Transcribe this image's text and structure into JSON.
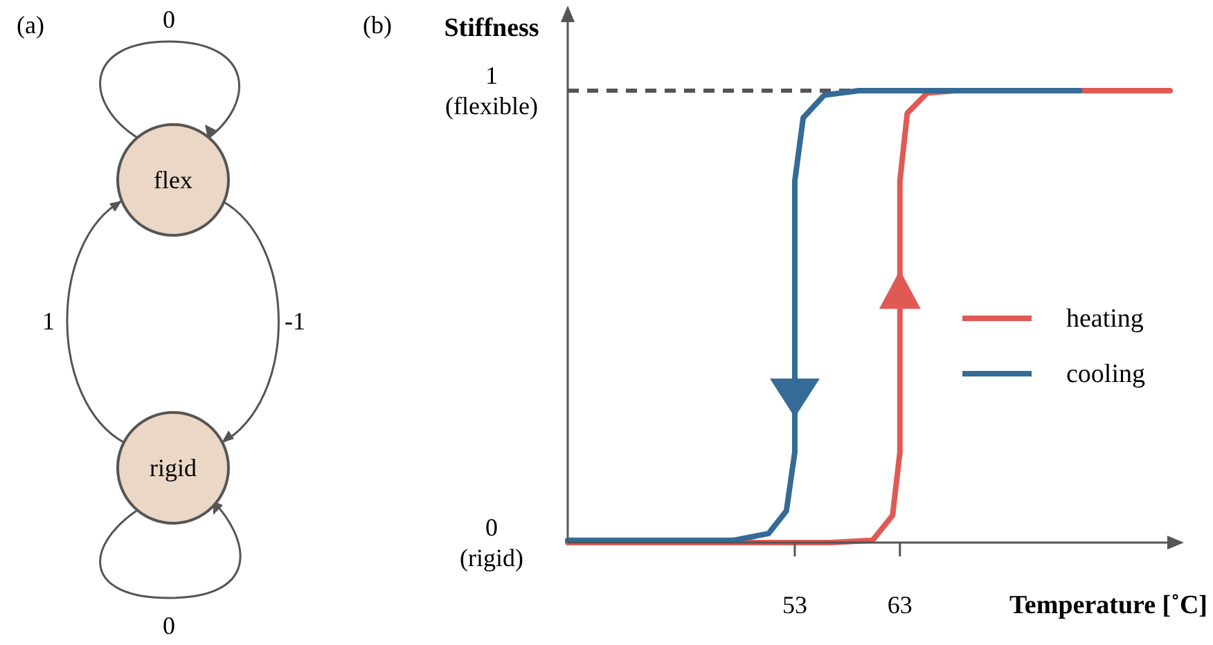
{
  "chart_data": [
    {
      "type": "other",
      "title": "(a)",
      "annotations": [
        "0",
        "flex",
        "1",
        "-1",
        "rigid",
        "0"
      ]
    },
    {
      "type": "line",
      "title": "(b)",
      "xlabel": "Temperature [˚C]",
      "ylabel": "Stiffness",
      "xlim": [
        31.4,
        88.7
      ],
      "ylim": [
        0,
        1.17
      ],
      "xticks": [
        53,
        63
      ],
      "yticks": [
        {
          "value": 0,
          "label": "0\n(rigid)"
        },
        {
          "value": 1,
          "label": "1\n(flexible)"
        }
      ],
      "legend": "right",
      "line_style": "solid",
      "ref_lines": [
        {
          "axis": "y",
          "value": 1,
          "label": null,
          "color": "#555555",
          "line_style": "dashed"
        }
      ],
      "series": [
        {
          "name": "heating",
          "color": "#e05a55",
          "x": [
            31.4,
            56.4,
            60.4,
            62.3,
            63,
            63,
            63.7,
            65.6,
            68.3,
            88.7
          ],
          "values": [
            0,
            0,
            0.005,
            0.06,
            0.2,
            0.8,
            0.95,
            0.995,
            1,
            1
          ]
        },
        {
          "name": "cooling",
          "color": "#356b96",
          "x": [
            80.1,
            59.1,
            55.8,
            53.8,
            53,
            53,
            52.2,
            50.5,
            47.2,
            31.4
          ],
          "values": [
            1,
            1,
            0.99,
            0.94,
            0.8,
            0.2,
            0.07,
            0.02,
            0.005,
            0.005
          ]
        }
      ]
    }
  ]
}
